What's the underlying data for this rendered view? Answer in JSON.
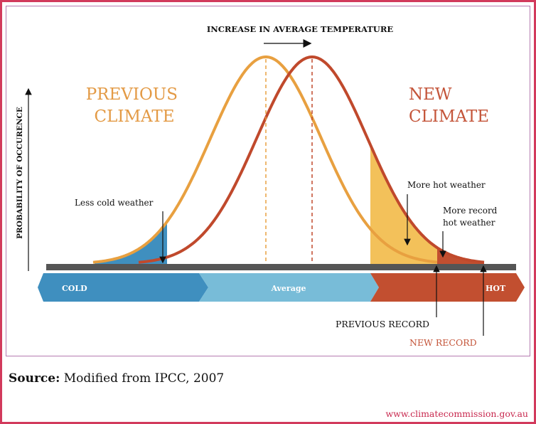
{
  "diagram": {
    "title": "INCREASE IN AVERAGE TEMPERATURE",
    "y_axis_label": "PROBABILITY OF OCCURENCE",
    "previous_climate": [
      "PREVIOUS",
      "CLIMATE"
    ],
    "new_climate": [
      "NEW",
      "CLIMATE"
    ],
    "less_cold": "Less cold weather",
    "more_hot": "More hot weather",
    "more_record": [
      "More record",
      "hot weather"
    ],
    "band": {
      "cold": "COLD",
      "average": "Average",
      "hot": "HOT"
    },
    "previous_record": "PREVIOUS RECORD",
    "new_record": "NEW RECORD",
    "colors": {
      "previous": "#e8a040",
      "new": "#c0492c",
      "cold": "#3f8fbf",
      "average": "#78bcd8",
      "hot": "#c24f30",
      "more_hot_fill": "#f3c15a"
    }
  },
  "source": {
    "label": "Source:",
    "text": " Modified from IPCC, 2007"
  },
  "url": "www.climatecommission.gov.au"
}
